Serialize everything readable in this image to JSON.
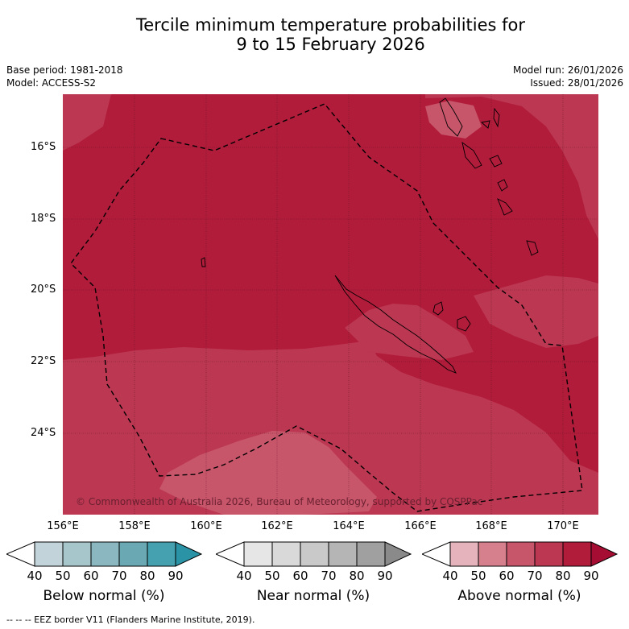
{
  "title": {
    "line1": "Tercile minimum temperature probabilities for",
    "line2": "9 to 15 February 2026"
  },
  "meta": {
    "base_period": "Base period: 1981-2018",
    "model": "Model: ACCESS-S2",
    "model_run": "Model run: 26/01/2026",
    "issued": "Issued: 28/01/2026"
  },
  "axes": {
    "lat_labels": [
      "16°S",
      "18°S",
      "20°S",
      "22°S",
      "24°S"
    ],
    "lon_labels": [
      "156°E",
      "158°E",
      "160°E",
      "162°E",
      "164°E",
      "166°E",
      "168°E",
      "170°E"
    ]
  },
  "colors": {
    "above_80_90": "#b11c3b",
    "above_70_80": "#bc3752",
    "above_60_70": "#c8566b",
    "above_50_60": "#d67f8d",
    "above_40_50": "#e5b3bb",
    "above_90": "#a50d33",
    "below": [
      "#c2d4d9",
      "#a6c6cb",
      "#8ab7c0",
      "#6aa8b4",
      "#45a0af",
      "#2a93a5"
    ],
    "near": [
      "#e6e6e6",
      "#d9d9d9",
      "#c9c9c9",
      "#b5b5b5",
      "#a0a0a0",
      "#8a8a8a"
    ]
  },
  "legend": {
    "ticks": [
      "40",
      "50",
      "60",
      "70",
      "80",
      "90"
    ],
    "below_label": "Below normal (%)",
    "near_label": "Near normal (%)",
    "above_label": "Above normal (%)"
  },
  "copyright": "© Commonwealth of Australia 2026, Bureau of Meteorology, supported by COSPPac",
  "footer": "-- -- -- EEZ border V11 (Flanders Marine Institute, 2019)."
}
